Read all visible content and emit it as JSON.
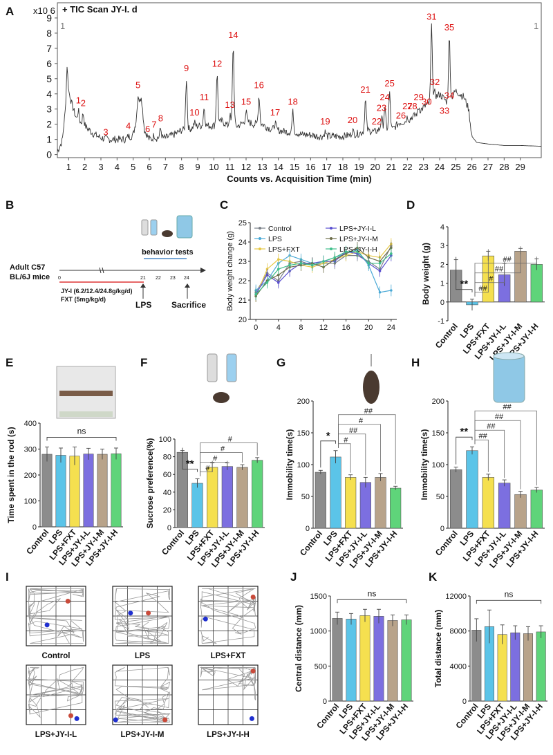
{
  "panel_letters": [
    "A",
    "B",
    "C",
    "D",
    "E",
    "F",
    "G",
    "H",
    "I",
    "J",
    "K"
  ],
  "groups": [
    "Control",
    "LPS",
    "LPS+FXT",
    "LPS+JY-I-L",
    "LPS+JY-I-M",
    "LPS+JY-I-H"
  ],
  "colors": {
    "Control": "#8c8c8c",
    "LPS": "#5bc4e8",
    "LPS+FXT": "#f5e04f",
    "LPS+JY-I-L": "#7c6fe0",
    "LPS+JY-I-M": "#b8a38a",
    "LPS+JY-I-H": "#5fd47a",
    "annot": "#d11"
  },
  "scheme": {
    "subject_line1": "Adult C57",
    "subject_line2": "BL/6J mice",
    "days": [
      "0",
      "21",
      "22",
      "23",
      "24"
    ],
    "dose_line1": "JY-I (6.2/12.4/24.8g/kg/d)",
    "dose_line2": "FXT (5mg/kg/d)",
    "lps": "LPS",
    "sacrifice": "Sacrifice",
    "behavior": "behavior tests"
  },
  "open_field_labels": [
    "Control",
    "LPS",
    "LPS+FXT",
    "LPS+JY-I-L",
    "LPS+JY-I-M",
    "LPS+JY-I-H"
  ],
  "chart_data": [
    {
      "panel": "A",
      "type": "line",
      "title": "+  TIC Scan JY-I. d",
      "y_multiplier": "x10 6",
      "xlabel": "Counts vs. Acquisition Time (min)",
      "corner_label": "1",
      "xlim": [
        0.3,
        30.3
      ],
      "ylim": [
        -0.2,
        10
      ],
      "xticks": [
        1,
        2,
        3,
        4,
        5,
        6,
        7,
        8,
        9,
        10,
        11,
        12,
        13,
        14,
        15,
        16,
        17,
        18,
        19,
        20,
        21,
        22,
        23,
        24,
        25,
        26,
        27,
        28,
        29
      ],
      "yticks": [
        0,
        1,
        2,
        3,
        4,
        5,
        6,
        7,
        8,
        9
      ],
      "trace_baseline": [
        [
          0.3,
          0.2
        ],
        [
          0.6,
          0.9
        ],
        [
          0.8,
          3
        ],
        [
          0.9,
          5.9
        ],
        [
          1.0,
          4.2
        ],
        [
          1.2,
          3.3
        ],
        [
          1.5,
          2.3
        ],
        [
          2,
          1.9
        ],
        [
          2.5,
          1.4
        ],
        [
          3,
          1.1
        ],
        [
          3.5,
          1.0
        ],
        [
          4,
          1.0
        ],
        [
          4.5,
          1.0
        ],
        [
          5,
          1.3
        ],
        [
          5.5,
          3.9
        ],
        [
          5.7,
          1.6
        ],
        [
          6,
          1.0
        ],
        [
          6.5,
          1.1
        ],
        [
          7,
          1.1
        ],
        [
          7.5,
          1.3
        ],
        [
          8,
          1.6
        ],
        [
          8.5,
          1.7
        ],
        [
          9,
          1.9
        ],
        [
          9.5,
          1.9
        ],
        [
          10,
          1.9
        ],
        [
          10.5,
          2.2
        ],
        [
          11,
          1.8
        ],
        [
          11.5,
          1.9
        ],
        [
          12,
          2.2
        ],
        [
          12.5,
          2.0
        ],
        [
          13,
          2.0
        ],
        [
          13.5,
          1.7
        ],
        [
          14,
          1.6
        ],
        [
          14.5,
          1.5
        ],
        [
          15,
          1.5
        ],
        [
          15.5,
          1.3
        ],
        [
          16,
          1.3
        ],
        [
          16.5,
          1.2
        ],
        [
          17,
          1.2
        ],
        [
          17.5,
          1.2
        ],
        [
          18,
          1.2
        ],
        [
          18.5,
          1.3
        ],
        [
          19,
          1.4
        ],
        [
          19.5,
          1.6
        ],
        [
          20,
          1.5
        ],
        [
          20.5,
          1.8
        ],
        [
          21,
          1.6
        ],
        [
          21.5,
          2.1
        ],
        [
          22,
          2.2
        ],
        [
          22.5,
          2.6
        ],
        [
          23,
          3.1
        ],
        [
          23.5,
          3.5
        ],
        [
          24,
          4.0
        ],
        [
          24.5,
          3.4
        ],
        [
          25,
          4.2
        ],
        [
          25.5,
          3.8
        ],
        [
          25.8,
          3.0
        ],
        [
          26,
          1.2
        ],
        [
          26.3,
          0.8
        ],
        [
          27,
          0.7
        ],
        [
          28,
          0.6
        ],
        [
          29,
          0.6
        ],
        [
          30.3,
          0.55
        ]
      ],
      "peaks": [
        {
          "label": "1",
          "x": 1.6,
          "y": 3.2
        },
        {
          "label": "2",
          "x": 1.9,
          "y": 3.0
        },
        {
          "label": "3",
          "x": 3.3,
          "y": 1.1
        },
        {
          "label": "4",
          "x": 4.7,
          "y": 1.5
        },
        {
          "label": "5",
          "x": 5.3,
          "y": 4.2
        },
        {
          "label": "6",
          "x": 5.9,
          "y": 1.3
        },
        {
          "label": "7",
          "x": 6.3,
          "y": 1.6
        },
        {
          "label": "8",
          "x": 6.7,
          "y": 2.0
        },
        {
          "label": "9",
          "x": 8.3,
          "y": 5.3
        },
        {
          "label": "10",
          "x": 8.8,
          "y": 2.4
        },
        {
          "label": "11",
          "x": 9.4,
          "y": 3.4
        },
        {
          "label": "12",
          "x": 10.2,
          "y": 5.6
        },
        {
          "label": "13",
          "x": 11.0,
          "y": 2.9
        },
        {
          "label": "14",
          "x": 11.2,
          "y": 7.5
        },
        {
          "label": "15",
          "x": 12.0,
          "y": 3.1
        },
        {
          "label": "16",
          "x": 12.8,
          "y": 4.2
        },
        {
          "label": "17",
          "x": 13.8,
          "y": 2.4
        },
        {
          "label": "18",
          "x": 14.9,
          "y": 3.1
        },
        {
          "label": "19",
          "x": 16.9,
          "y": 1.8
        },
        {
          "label": "20",
          "x": 18.6,
          "y": 1.9
        },
        {
          "label": "21",
          "x": 19.4,
          "y": 3.9
        },
        {
          "label": "22",
          "x": 20.1,
          "y": 1.8
        },
        {
          "label": "23",
          "x": 20.4,
          "y": 2.7
        },
        {
          "label": "24",
          "x": 20.6,
          "y": 3.4
        },
        {
          "label": "25",
          "x": 20.9,
          "y": 4.3
        },
        {
          "label": "26",
          "x": 21.6,
          "y": 2.2
        },
        {
          "label": "27",
          "x": 22.0,
          "y": 2.8
        },
        {
          "label": "28",
          "x": 22.3,
          "y": 2.8
        },
        {
          "label": "29",
          "x": 22.7,
          "y": 3.4
        },
        {
          "label": "30",
          "x": 23.2,
          "y": 3.1
        },
        {
          "label": "31",
          "x": 23.5,
          "y": 8.7
        },
        {
          "label": "32",
          "x": 23.7,
          "y": 4.4
        },
        {
          "label": "33",
          "x": 24.3,
          "y": 2.5
        },
        {
          "label": "34",
          "x": 24.6,
          "y": 3.5
        },
        {
          "label": "35",
          "x": 24.6,
          "y": 8.0
        }
      ]
    },
    {
      "panel": "C",
      "type": "line",
      "ylabel": "Body weight change (g)",
      "xlim": [
        -1,
        25
      ],
      "ylim": [
        20,
        25
      ],
      "xticks": [
        0,
        4,
        8,
        12,
        16,
        20,
        24
      ],
      "yticks": [
        20,
        21,
        22,
        23,
        24,
        25
      ],
      "x": [
        0,
        2,
        4,
        6,
        8,
        10,
        12,
        14,
        16,
        18,
        20,
        22,
        24
      ],
      "series": [
        {
          "name": "Control",
          "values": [
            21.4,
            22.4,
            22.0,
            22.9,
            23.0,
            22.8,
            22.9,
            22.9,
            23.3,
            23.3,
            23.0,
            22.6,
            23.8
          ]
        },
        {
          "name": "LPS",
          "values": [
            21.5,
            22.0,
            22.9,
            23.3,
            23.1,
            22.9,
            23.0,
            23.2,
            23.4,
            23.6,
            22.8,
            21.4,
            21.5
          ]
        },
        {
          "name": "LPS+FXT",
          "values": [
            21.2,
            22.6,
            23.1,
            23.0,
            22.8,
            22.7,
            22.9,
            23.1,
            23.3,
            23.5,
            23.3,
            23.2,
            23.9
          ]
        },
        {
          "name": "LPS+JY-I-L",
          "values": [
            21.3,
            22.3,
            21.9,
            22.5,
            22.9,
            22.9,
            23.0,
            23.0,
            23.5,
            23.4,
            22.9,
            22.5,
            23.3
          ]
        },
        {
          "name": "LPS+JY-I-M",
          "values": [
            21.2,
            22.0,
            22.3,
            22.7,
            22.8,
            22.9,
            22.7,
            23.1,
            23.4,
            23.7,
            23.2,
            23.0,
            23.7
          ]
        },
        {
          "name": "LPS+JY-I-H",
          "values": [
            21.3,
            21.9,
            22.6,
            22.8,
            22.9,
            22.8,
            23.0,
            23.2,
            23.5,
            23.5,
            22.9,
            22.9,
            23.4
          ]
        }
      ]
    },
    {
      "panel": "D",
      "type": "bar",
      "ylabel": "Body weight (g)",
      "ylim": [
        -1,
        4
      ],
      "yticks": [
        -1,
        0,
        1,
        2,
        3,
        4
      ],
      "values": [
        1.7,
        -0.15,
        2.45,
        1.45,
        2.7,
        2.0
      ],
      "errors": [
        0.55,
        0.3,
        0.25,
        0.6,
        0.15,
        0.3
      ],
      "annotations": [
        {
          "from": 1,
          "to": 0,
          "text": "**"
        },
        {
          "from": 1,
          "to": 2,
          "text": "##"
        },
        {
          "from": 1,
          "to": 3,
          "text": "#"
        },
        {
          "from": 1,
          "to": 4,
          "text": "##"
        },
        {
          "from": 1,
          "to": 5,
          "text": "##"
        }
      ]
    },
    {
      "panel": "E",
      "type": "bar",
      "ylabel": "Time spent in the rod (s)",
      "ylim": [
        0,
        400
      ],
      "yticks": [
        0,
        100,
        200,
        300,
        400
      ],
      "values": [
        280,
        276,
        273,
        281,
        280,
        282
      ],
      "errors": [
        28,
        28,
        35,
        22,
        20,
        22
      ],
      "annotations": [
        {
          "from": 0,
          "to": 5,
          "text": "ns"
        }
      ]
    },
    {
      "panel": "F",
      "type": "bar",
      "ylabel": "Sucrose preference(%)",
      "ylim": [
        0,
        100
      ],
      "yticks": [
        0,
        20,
        40,
        60,
        80,
        100
      ],
      "values": [
        85,
        50,
        68,
        69,
        68,
        76
      ],
      "errors": [
        2,
        5,
        5,
        4,
        3,
        3
      ],
      "annotations": [
        {
          "from": 0,
          "to": 1,
          "text": "**"
        },
        {
          "from": 1,
          "to": 2,
          "text": "#"
        },
        {
          "from": 1,
          "to": 3,
          "text": "#"
        },
        {
          "from": 1,
          "to": 4,
          "text": "#"
        },
        {
          "from": 1,
          "to": 5,
          "text": "#"
        }
      ]
    },
    {
      "panel": "G",
      "type": "bar",
      "ylabel": "Immobility time(s)",
      "ylim": [
        0,
        200
      ],
      "yticks": [
        0,
        50,
        100,
        150,
        200
      ],
      "values": [
        88,
        112,
        80,
        72,
        80,
        63
      ],
      "errors": [
        3,
        10,
        4,
        8,
        6,
        3
      ],
      "annotations": [
        {
          "from": 0,
          "to": 1,
          "text": "*"
        },
        {
          "from": 1,
          "to": 2,
          "text": "#"
        },
        {
          "from": 1,
          "to": 3,
          "text": "##"
        },
        {
          "from": 1,
          "to": 4,
          "text": "#"
        },
        {
          "from": 1,
          "to": 5,
          "text": "##"
        }
      ]
    },
    {
      "panel": "H",
      "type": "bar",
      "ylabel": "Immobility time(s)",
      "ylim": [
        0,
        200
      ],
      "yticks": [
        0,
        50,
        100,
        150,
        200
      ],
      "values": [
        92,
        122,
        80,
        71,
        53,
        60
      ],
      "errors": [
        4,
        6,
        5,
        5,
        5,
        4
      ],
      "annotations": [
        {
          "from": 0,
          "to": 1,
          "text": "**"
        },
        {
          "from": 1,
          "to": 2,
          "text": "##"
        },
        {
          "from": 1,
          "to": 3,
          "text": "##"
        },
        {
          "from": 1,
          "to": 4,
          "text": "##"
        },
        {
          "from": 1,
          "to": 5,
          "text": "##"
        }
      ]
    },
    {
      "panel": "J",
      "type": "bar",
      "ylabel": "Central distance (mm)",
      "ylim": [
        0,
        1500
      ],
      "yticks": [
        0,
        500,
        1000,
        1500
      ],
      "values": [
        1180,
        1170,
        1220,
        1210,
        1150,
        1160
      ],
      "errors": [
        90,
        80,
        90,
        100,
        80,
        70
      ],
      "annotations": [
        {
          "from": 0,
          "to": 5,
          "text": "ns"
        }
      ]
    },
    {
      "panel": "K",
      "type": "bar",
      "ylabel": "Total distance (mm)",
      "ylim": [
        0,
        12000
      ],
      "yticks": [
        0,
        4000,
        8000,
        12000
      ],
      "values": [
        8100,
        8500,
        7600,
        7800,
        7700,
        7900
      ],
      "errors": [
        1300,
        1900,
        1100,
        800,
        800,
        700
      ],
      "annotations": [
        {
          "from": 0,
          "to": 5,
          "text": "ns"
        }
      ]
    }
  ]
}
